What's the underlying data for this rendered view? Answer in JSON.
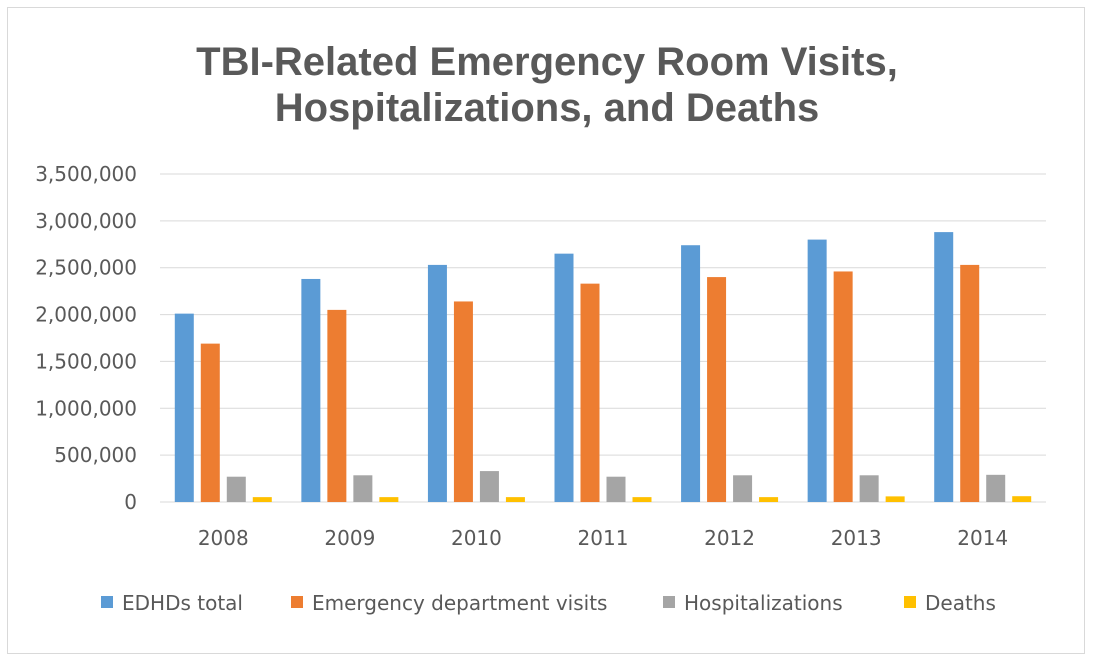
{
  "chart_data": {
    "type": "bar",
    "title": [
      "TBI-Related Emergency Room Visits,",
      "Hospitalizations, and Deaths"
    ],
    "xlabel": "",
    "ylabel": "",
    "categories": [
      "2008",
      "2009",
      "2010",
      "2011",
      "2012",
      "2013",
      "2014"
    ],
    "ylim": [
      0,
      3500000
    ],
    "yticks": [
      0,
      500000,
      1000000,
      1500000,
      2000000,
      2500000,
      3000000,
      3500000
    ],
    "ytick_labels": [
      "0",
      "500,000",
      "1,000,000",
      "1,500,000",
      "2,000,000",
      "2,500,000",
      "3,000,000",
      "3,500,000"
    ],
    "grid": true,
    "legend_position": "bottom",
    "series": [
      {
        "name": "EDHDs total",
        "color": "#5b9bd5",
        "values": [
          2010000,
          2380000,
          2530000,
          2650000,
          2740000,
          2800000,
          2880000
        ]
      },
      {
        "name": "Emergency department visits",
        "color": "#ed7d31",
        "values": [
          1690000,
          2050000,
          2140000,
          2330000,
          2400000,
          2460000,
          2530000
        ]
      },
      {
        "name": "Hospitalizations",
        "color": "#a5a5a5",
        "values": [
          270000,
          285000,
          330000,
          270000,
          285000,
          285000,
          290000
        ]
      },
      {
        "name": "Deaths",
        "color": "#ffc000",
        "values": [
          52000,
          52000,
          52000,
          52000,
          52000,
          60000,
          62000
        ]
      }
    ]
  }
}
